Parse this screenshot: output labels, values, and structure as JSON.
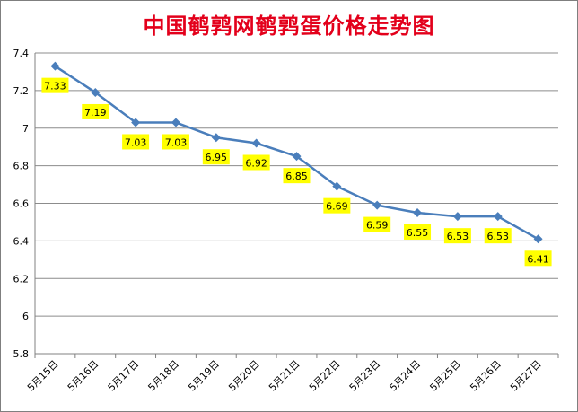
{
  "chart_data": {
    "type": "line",
    "title": "中国鹌鹑网鹌鹑蛋价格走势图",
    "categories": [
      "5月15日",
      "5月16日",
      "5月17日",
      "5月18日",
      "5月19日",
      "5月20日",
      "5月21日",
      "5月22日",
      "5月23日",
      "5月24日",
      "5月25日",
      "5月26日",
      "5月27日"
    ],
    "values": [
      7.33,
      7.19,
      7.03,
      7.03,
      6.95,
      6.92,
      6.85,
      6.69,
      6.59,
      6.55,
      6.53,
      6.53,
      6.41
    ],
    "data_labels": [
      "7.33",
      "7.19",
      "7.03",
      "7.03",
      "6.95",
      "6.92",
      "6.85",
      "6.69",
      "6.59",
      "6.55",
      "6.53",
      "6.53",
      "6.41"
    ],
    "yticks": [
      "5.8",
      "6",
      "6.2",
      "6.4",
      "6.6",
      "6.8",
      "7",
      "7.2",
      "7.4"
    ],
    "ylim": [
      5.8,
      7.4
    ],
    "grid": true,
    "legend": "none",
    "colors": {
      "line": "#4a7ebb",
      "label_bg": "#ffff00",
      "title": "#e3001b",
      "grid": "#8c8c8c"
    }
  }
}
